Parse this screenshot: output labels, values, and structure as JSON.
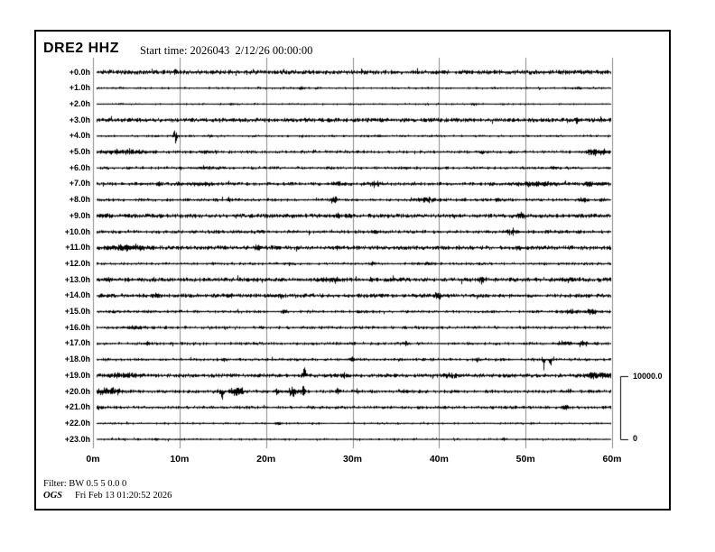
{
  "header": {
    "station": "DRE2 HHZ",
    "start_time": "Start time: 2026043  2/12/26 00:00:00"
  },
  "scale_bar": {
    "max": "10000.0",
    "min": "0"
  },
  "footer": {
    "filter": "Filter: BW 0.5 5 0.0 0",
    "agency": "OGS",
    "generated": "Fri Feb 13 01:20:52 2026"
  },
  "chart_data": {
    "type": "line",
    "title": "DRE2 HHZ helicorder — 24 hourly seismic traces",
    "x_unit": "minutes within hour",
    "x_range_minutes": [
      0,
      60
    ],
    "x_ticks": [
      "0m",
      "10m",
      "20m",
      "30m",
      "40m",
      "50m",
      "60m"
    ],
    "grid": "vertical lines every 10 minutes",
    "amplitude_scale": {
      "max": 10000.0,
      "min": 0
    },
    "traces": [
      {
        "label": "+0.0h",
        "base": 1.5,
        "density": 0.9,
        "events": [
          [
            9.5,
            3,
            0.2
          ]
        ]
      },
      {
        "label": "+1.0h",
        "base": 0.7,
        "density": 0.3,
        "events": [
          [
            24,
            1.5,
            0.3
          ],
          [
            56,
            1.5,
            0.4
          ]
        ]
      },
      {
        "label": "+2.0h",
        "base": 0.55,
        "density": 0.25,
        "events": [
          [
            16,
            1.2,
            0.3
          ],
          [
            44,
            1.2,
            0.3
          ]
        ]
      },
      {
        "label": "+3.0h",
        "base": 1.4,
        "density": 0.9,
        "events": [
          [
            55.9,
            5,
            0.2
          ]
        ]
      },
      {
        "label": "+4.0h",
        "base": 0.7,
        "density": 0.35,
        "events": [
          [
            9.45,
            10,
            0.22
          ],
          [
            13.5,
            2.5,
            0.3
          ],
          [
            33,
            1.5,
            0.3
          ]
        ]
      },
      {
        "label": "+5.0h",
        "base": 1.0,
        "density": 0.55,
        "events": [
          [
            3.5,
            3.5,
            2.2
          ],
          [
            13,
            1.8,
            1
          ],
          [
            45,
            2,
            0.3
          ],
          [
            57.6,
            4.5,
            0.7
          ],
          [
            58.9,
            4,
            0.5
          ]
        ]
      },
      {
        "label": "+6.0h",
        "base": 0.9,
        "density": 0.5,
        "events": [
          [
            13,
            1.8,
            1
          ],
          [
            36,
            2,
            0.3
          ],
          [
            53.2,
            3,
            0.3
          ]
        ]
      },
      {
        "label": "+7.0h",
        "base": 1.1,
        "density": 0.6,
        "events": [
          [
            7.6,
            2,
            0.25
          ],
          [
            9.8,
            2.5,
            0.25
          ],
          [
            12.5,
            2,
            1.5
          ],
          [
            28.5,
            2.5,
            0.8
          ],
          [
            32.7,
            4,
            0.7
          ],
          [
            46.1,
            2.5,
            0.3
          ],
          [
            51.5,
            3,
            2.5
          ],
          [
            57.3,
            4,
            0.4
          ],
          [
            59,
            3,
            0.6
          ]
        ]
      },
      {
        "label": "+8.0h",
        "base": 1.0,
        "density": 0.55,
        "events": [
          [
            15.7,
            2.5,
            0.25
          ],
          [
            27.8,
            7,
            0.3
          ],
          [
            38.5,
            3.5,
            1.2
          ],
          [
            42.8,
            2.5,
            0.3
          ],
          [
            46.8,
            2.5,
            0.3
          ],
          [
            56.5,
            4.5,
            0.4
          ],
          [
            59,
            2.5,
            0.4
          ]
        ]
      },
      {
        "label": "+9.0h",
        "base": 1.4,
        "density": 0.85,
        "events": [
          [
            1,
            2,
            0.8
          ],
          [
            28.2,
            2,
            0.25
          ],
          [
            49.4,
            3.5,
            0.3
          ]
        ]
      },
      {
        "label": "+10.0h",
        "base": 1.1,
        "density": 0.6,
        "events": [
          [
            32.7,
            3,
            0.3
          ],
          [
            48.4,
            5,
            0.6
          ],
          [
            56,
            2,
            0.3
          ]
        ]
      },
      {
        "label": "+11.0h",
        "base": 1.4,
        "density": 0.8,
        "events": [
          [
            4,
            3.5,
            1.8
          ],
          [
            18.9,
            2.5,
            0.5
          ],
          [
            21.2,
            2,
            0.3
          ],
          [
            28.2,
            2.5,
            0.25
          ],
          [
            49.2,
            3,
            0.3
          ]
        ]
      },
      {
        "label": "+12.0h",
        "base": 0.85,
        "density": 0.45,
        "events": [
          [
            22.6,
            2.5,
            0.25
          ],
          [
            32.3,
            2.5,
            0.25
          ],
          [
            38.7,
            2.5,
            0.5
          ]
        ]
      },
      {
        "label": "+13.0h",
        "base": 1.4,
        "density": 0.85,
        "events": [
          [
            1.6,
            2.5,
            0.25
          ],
          [
            27.5,
            2.5,
            0.7
          ],
          [
            44.8,
            5,
            0.3
          ],
          [
            55.2,
            5,
            0.3
          ]
        ]
      },
      {
        "label": "+14.0h",
        "base": 1.3,
        "density": 0.8,
        "events": [
          [
            7.2,
            2,
            0.25
          ],
          [
            15.7,
            2,
            0.25
          ],
          [
            21.6,
            2.5,
            0.3
          ],
          [
            39.9,
            4,
            0.3
          ]
        ]
      },
      {
        "label": "+15.0h",
        "base": 0.95,
        "density": 0.5,
        "events": [
          [
            22.1,
            2.5,
            0.3
          ],
          [
            55,
            2.5,
            0.8
          ],
          [
            57.5,
            3,
            0.8
          ]
        ]
      },
      {
        "label": "+16.0h",
        "base": 0.95,
        "density": 0.5,
        "events": [
          [
            5,
            2.5,
            1
          ],
          [
            19.5,
            2,
            0.25
          ]
        ]
      },
      {
        "label": "+17.0h",
        "base": 0.95,
        "density": 0.5,
        "events": [
          [
            6.3,
            2.5,
            0.25
          ],
          [
            36.1,
            3,
            0.3
          ],
          [
            54.5,
            3,
            0.8
          ],
          [
            56.5,
            3.5,
            0.5
          ]
        ]
      },
      {
        "label": "+18.0h",
        "base": 0.95,
        "density": 0.5,
        "events": [
          [
            15.1,
            2.5,
            0.25
          ],
          [
            29.8,
            6,
            0.25
          ],
          [
            44.4,
            2.5,
            0.3
          ],
          [
            52.1,
            12,
            0.12,
            -1
          ],
          [
            52.8,
            12,
            0.12,
            -1
          ]
        ]
      },
      {
        "label": "+19.0h",
        "base": 1.3,
        "density": 0.8,
        "events": [
          [
            3.5,
            3,
            1.5
          ],
          [
            24.4,
            7,
            0.2,
            1
          ],
          [
            29,
            2.5,
            0.3
          ],
          [
            41.5,
            3,
            0.8
          ],
          [
            50,
            2,
            0.3
          ],
          [
            58,
            5,
            1
          ],
          [
            59.3,
            4,
            0.5
          ]
        ]
      },
      {
        "label": "+20.0h",
        "base": 1.1,
        "density": 0.6,
        "events": [
          [
            1,
            4,
            1
          ],
          [
            2.5,
            4,
            0.8
          ],
          [
            14.9,
            9,
            0.2,
            -1
          ],
          [
            16.3,
            7,
            0.5
          ],
          [
            17,
            6,
            0.3
          ],
          [
            21.2,
            4,
            0.2
          ],
          [
            23,
            7,
            0.5
          ],
          [
            24.2,
            6,
            0.3
          ],
          [
            28.2,
            4,
            0.2
          ],
          [
            30.5,
            4,
            0.2
          ],
          [
            36,
            2,
            0.5
          ],
          [
            42,
            2,
            0.3
          ],
          [
            55,
            1.5,
            0.4
          ]
        ]
      },
      {
        "label": "+21.0h",
        "base": 1.0,
        "density": 0.6,
        "events": [
          [
            0.5,
            2.5,
            0.4
          ],
          [
            25,
            1.5,
            0.3
          ],
          [
            54.5,
            3,
            0.3
          ]
        ]
      },
      {
        "label": "+22.0h",
        "base": 0.65,
        "density": 0.3,
        "events": [
          [
            21.4,
            2,
            0.25
          ]
        ]
      },
      {
        "label": "+23.0h",
        "base": 0.65,
        "density": 0.3,
        "events": [
          [
            7.2,
            2,
            0.25
          ],
          [
            47.4,
            2,
            0.25
          ]
        ]
      }
    ]
  }
}
